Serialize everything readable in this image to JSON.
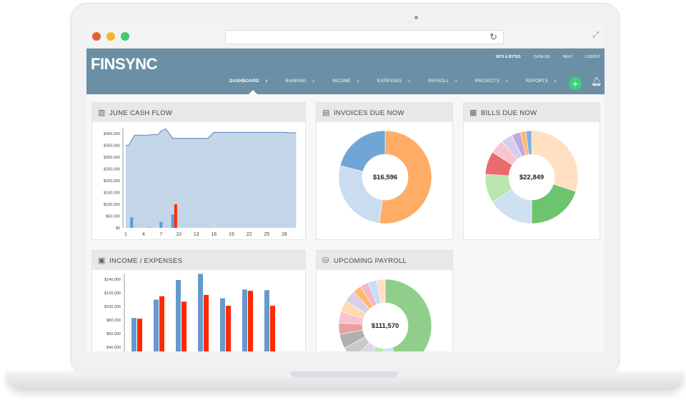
{
  "header": {
    "logo": "FINSYNC",
    "top_links": [
      "BITS & BYTES",
      "CATALOG",
      "HELP",
      "LOGOUT"
    ],
    "nav": [
      "DASHBOARD",
      "BANKING",
      "INCOME",
      "EXPENSES",
      "PAYROLL",
      "PROJECTS",
      "REPORTS"
    ],
    "active": "DASHBOARD"
  },
  "panels": {
    "cash_flow": "JUNE CASH FLOW",
    "invoices": "INVOICES DUE NOW",
    "bills": "BILLS DUE NOW",
    "income_expenses": "INCOME / EXPENSES",
    "payroll": "UPCOMING PAYROLL"
  },
  "chart_data": [
    {
      "type": "area",
      "title": "JUNE CASH FLOW",
      "ylim": [
        0,
        400000
      ],
      "yticks": [
        "$0",
        "$50,000",
        "$100,000",
        "$150,000",
        "$200,000",
        "$250,000",
        "$300,000",
        "$350,000",
        "$400,000"
      ],
      "xticks": [
        "1",
        "4",
        "7",
        "10",
        "13",
        "16",
        "19",
        "22",
        "25",
        "28"
      ],
      "balance": {
        "x": [
          1,
          1.5,
          2.5,
          5,
          5.5,
          6.5,
          7,
          7.8,
          9,
          15,
          16,
          17,
          28,
          29,
          30
        ],
        "y": [
          350000,
          350000,
          393000,
          393000,
          396000,
          396000,
          410000,
          420000,
          380000,
          380000,
          405000,
          405000,
          405000,
          403000,
          403000
        ]
      },
      "bars": [
        {
          "day": 2,
          "value": 45000,
          "color": "#5b9bd5"
        },
        {
          "day": 5,
          "value": 2000,
          "color": "#5b9bd5"
        },
        {
          "day": 7,
          "value": 25000,
          "color": "#5b9bd5"
        },
        {
          "day": 9,
          "value": 57000,
          "color": "#5b9bd5"
        },
        {
          "day": 9.5,
          "value": 100000,
          "color": "#ff2a00"
        },
        {
          "day": 16,
          "value": 25000,
          "color": "#d8d8d8"
        }
      ]
    },
    {
      "type": "bar",
      "title": "INCOME / EXPENSES",
      "yticks": [
        "$40,000",
        "$60,000",
        "$80,000",
        "$100,000",
        "$120,000",
        "$140,000"
      ],
      "series": [
        {
          "color": "#6699cc",
          "values": [
            83000,
            110000,
            139000,
            148000,
            112000,
            125000,
            124000
          ]
        },
        {
          "color": "#ff2a00",
          "values": [
            82000,
            115000,
            107000,
            117000,
            101000,
            123000,
            101000
          ]
        }
      ]
    },
    {
      "type": "pie",
      "title": "INVOICES DUE NOW",
      "center_label": "$16,596",
      "values": [
        0.52,
        0.27,
        0.21
      ],
      "colors": [
        "#ffad66",
        "#c9dcf0",
        "#6fa6d6"
      ]
    },
    {
      "type": "pie",
      "title": "BILLS DUE NOW",
      "center_label": "$22,849",
      "values": [
        0.3,
        0.2,
        0.16,
        0.1,
        0.08,
        0.05,
        0.04,
        0.03,
        0.02,
        0.02
      ],
      "colors": [
        "#ffe0c2",
        "#6cc46e",
        "#cfe0f2",
        "#b9e6b0",
        "#e96b6b",
        "#f9c3cf",
        "#d8cdea",
        "#bfa9dc",
        "#ffb870",
        "#7fb0e0"
      ]
    },
    {
      "type": "pie",
      "title": "UPCOMING PAYROLL",
      "center_label": "$111,570",
      "values": [
        0.45,
        0.06,
        0.06,
        0.05,
        0.05,
        0.05,
        0.04,
        0.04,
        0.04,
        0.04,
        0.03,
        0.03,
        0.03,
        0.03
      ],
      "colors": [
        "#8fcf8a",
        "#cfe0f2",
        "#b9e6b0",
        "#e0d3ee",
        "#c9c9c9",
        "#b0b0b0",
        "#e8a0a0",
        "#f9c3cf",
        "#ffd9b3",
        "#d8cdea",
        "#ffb870",
        "#f5b5c8",
        "#c4dff5",
        "#ffe0c2"
      ]
    }
  ]
}
